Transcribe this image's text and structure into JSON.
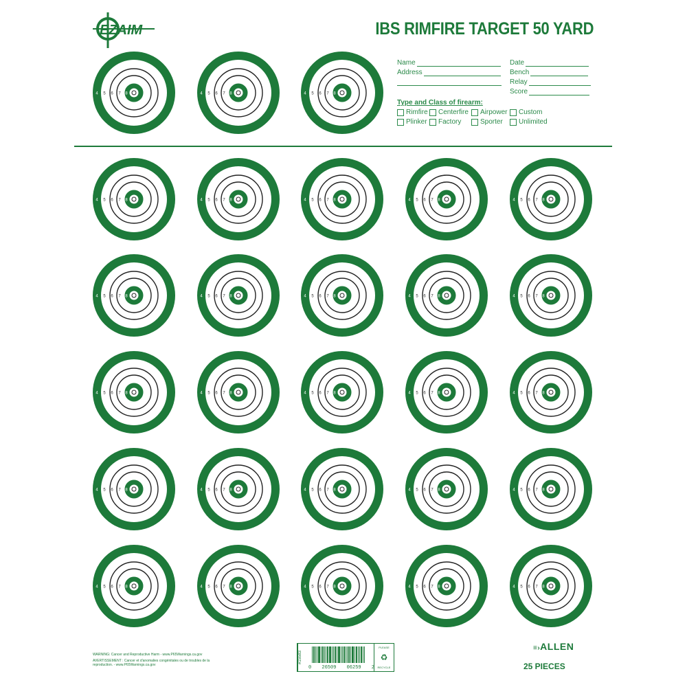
{
  "brand_color": "#1d7a3a",
  "header": {
    "logo_text": "EZ AIM",
    "title": "IBS RIMFIRE TARGET 50 YARD"
  },
  "form": {
    "name_label": "Name",
    "address_label": "Address",
    "date_label": "Date",
    "bench_label": "Bench",
    "relay_label": "Relay",
    "score_label": "Score",
    "type_title": "Type and Class of firearm:",
    "options": [
      "Rimfire",
      "Centerfire",
      "Airpower",
      "Custom",
      "Plinker",
      "Factory",
      "Sporter",
      "Unlimited"
    ]
  },
  "target": {
    "ring_numbers": [
      "4",
      "5",
      "6",
      "7",
      "8",
      "9"
    ],
    "top_row_count": 3,
    "grid_rows": 5,
    "grid_cols": 5
  },
  "footer": {
    "warning_en": "WARNING: Cancer and Reproductive Harm - www.P65Warnings.ca.gov",
    "warning_fr": "AVERTISSEMENT : Cancer et d'anomalies congénitales ou de troubles de la reproduction. - www.P65Warnings.ca.gov",
    "item_number": "#15583",
    "barcode_digits": [
      "0",
      "26509",
      "06259",
      "2"
    ],
    "recycle_top": "PLEASE",
    "recycle_bottom": "RECYCLE",
    "brand": "ALLEN",
    "pieces": "25 PIECES"
  }
}
